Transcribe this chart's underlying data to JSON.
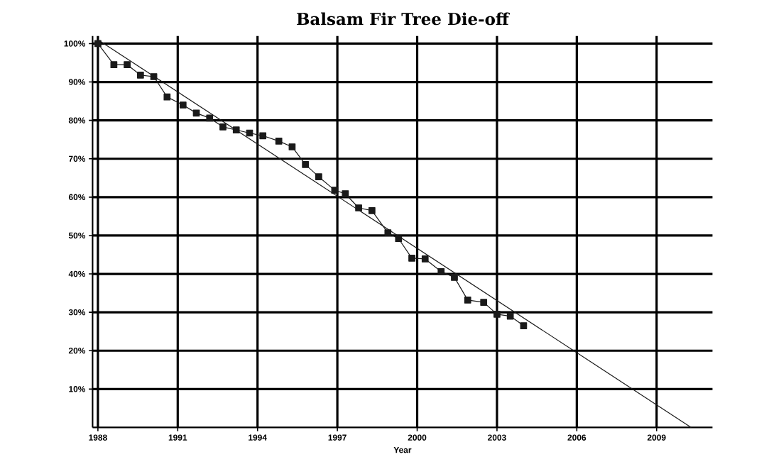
{
  "chart_data": {
    "type": "line",
    "title": "Balsam Fir Tree Die-off",
    "xlabel": "Year",
    "xlim": [
      1987.8,
      2011.1
    ],
    "ylim": [
      0,
      102
    ],
    "xticks": [
      1988,
      1991,
      1994,
      1997,
      2000,
      2003,
      2006,
      2009
    ],
    "yticks": [
      {
        "value": 10,
        "label": "10%"
      },
      {
        "value": 20,
        "label": "20%"
      },
      {
        "value": 30,
        "label": "30%"
      },
      {
        "value": 40,
        "label": "40%"
      },
      {
        "value": 50,
        "label": "50%"
      },
      {
        "value": 60,
        "label": "60%"
      },
      {
        "value": 70,
        "label": "70%"
      },
      {
        "value": 80,
        "label": "80%"
      },
      {
        "value": 90,
        "label": "90%"
      },
      {
        "value": 100,
        "label": "100%"
      }
    ],
    "grid": true,
    "series": [
      {
        "color": "#1a1a1a",
        "marker": "square",
        "x": [
          1988.0,
          1988.6,
          1989.1,
          1989.6,
          1990.1,
          1990.6,
          1991.2,
          1991.7,
          1992.2,
          1992.7,
          1993.2,
          1993.7,
          1994.2,
          1994.8,
          1995.3,
          1995.8,
          1996.3,
          1996.9,
          1997.3,
          1997.8,
          1998.3,
          1998.9,
          1999.3,
          1999.8,
          2000.3,
          2000.9,
          2001.4,
          2001.9,
          2002.5,
          2003.0,
          2003.5,
          2004.0
        ],
        "values": [
          100,
          94.5,
          94.5,
          91.8,
          91.4,
          86.1,
          84.0,
          81.9,
          80.6,
          78.3,
          77.5,
          76.7,
          76.0,
          74.6,
          73.1,
          68.5,
          65.3,
          61.8,
          60.9,
          57.2,
          56.5,
          50.7,
          49.2,
          44.1,
          43.9,
          40.6,
          39.1,
          33.2,
          32.6,
          29.5,
          29.0,
          26.5
        ]
      },
      {
        "color": "#1a1a1a",
        "marker": "none",
        "x": [
          1988.0,
          2010.3
        ],
        "values": [
          101,
          0
        ]
      }
    ]
  }
}
